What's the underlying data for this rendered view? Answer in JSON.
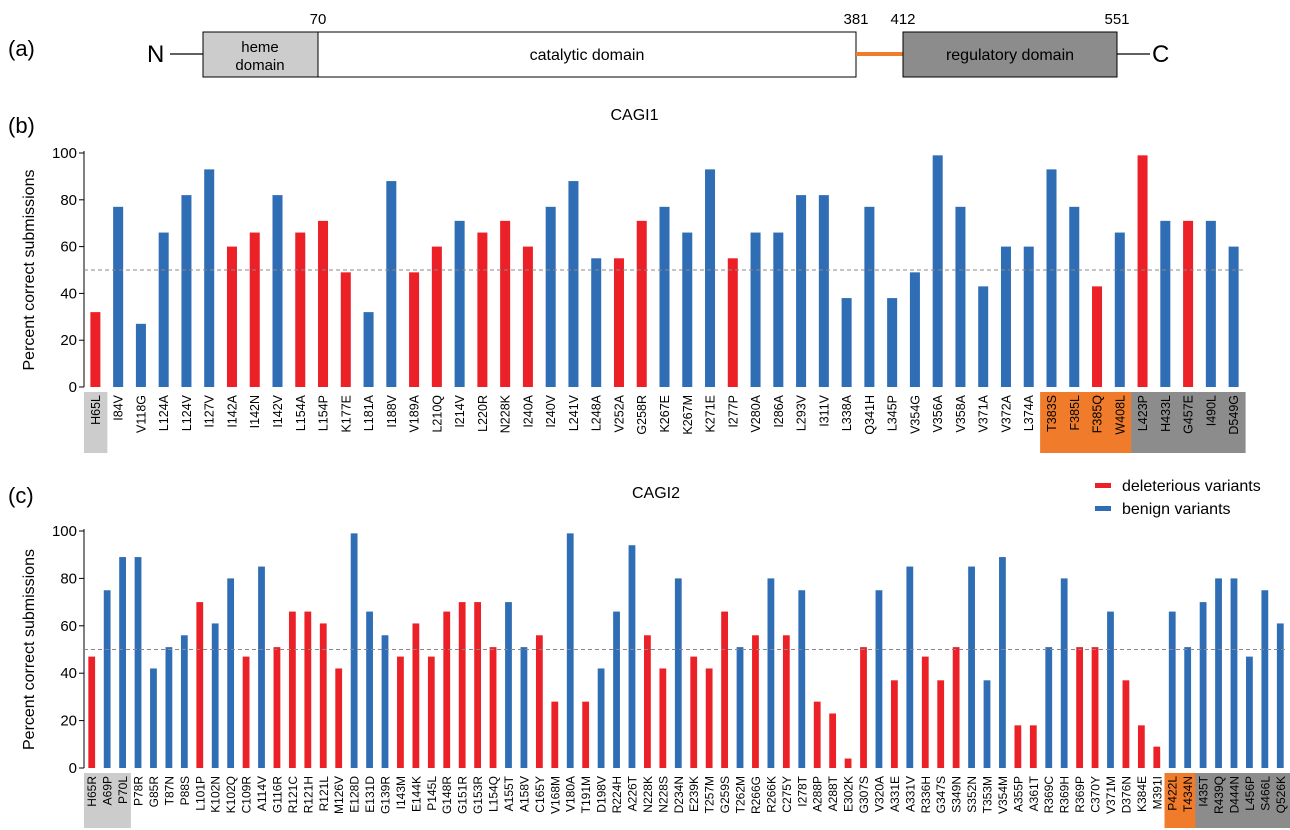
{
  "panels": {
    "a": "(a)",
    "b": "(b)",
    "c": "(c)"
  },
  "domain_diagram": {
    "n_label": "N",
    "c_label": "C",
    "positions": [
      "70",
      "381",
      "412",
      "551"
    ],
    "heme_label_line1": "heme",
    "heme_label_line2": "domain",
    "catalytic_label": "catalytic domain",
    "regulatory_label": "regulatory domain",
    "colors": {
      "heme": "#cccccc",
      "catalytic": "#ffffff",
      "linker": "#f07b2a",
      "regulatory": "#8c8c8c"
    }
  },
  "legend": {
    "deleterious": "deleterious variants",
    "benign": "benign variants",
    "placement": "top-right"
  },
  "colors": {
    "deleterious": "#ec2027",
    "benign": "#2f6db5",
    "highlight_gray": "#cccccc",
    "highlight_orange": "#f07b2a",
    "highlight_dark": "#8c8c8c"
  },
  "chart_data": [
    {
      "type": "bar",
      "title": "CAGI1",
      "ylabel": "Percent correct submissions",
      "ylim": [
        0,
        100
      ],
      "yticks": [
        "0",
        "20",
        "40",
        "60",
        "80",
        "100"
      ],
      "reference_line": 50,
      "categories": [
        "H65L",
        "I84V",
        "V118G",
        "L124A",
        "L124V",
        "I127V",
        "I142A",
        "I142N",
        "I142V",
        "L154A",
        "L154P",
        "K177E",
        "L181A",
        "I188V",
        "V189A",
        "L210Q",
        "I214V",
        "L220R",
        "N228K",
        "I240A",
        "I240V",
        "L241V",
        "L248A",
        "V252A",
        "G258R",
        "K267E",
        "K267M",
        "K271E",
        "I277P",
        "V280A",
        "I286A",
        "L293V",
        "I311V",
        "L338A",
        "Q341H",
        "L345P",
        "V354G",
        "V356A",
        "V358A",
        "V371A",
        "V372A",
        "L374A",
        "T383S",
        "F385L",
        "F385Q",
        "W408L",
        "L423P",
        "H433L",
        "G457E",
        "I490L",
        "D549G"
      ],
      "values": [
        32,
        77,
        27,
        66,
        82,
        93,
        60,
        66,
        82,
        66,
        71,
        49,
        32,
        88,
        49,
        60,
        71,
        66,
        71,
        60,
        77,
        88,
        55,
        55,
        71,
        77,
        66,
        93,
        55,
        66,
        66,
        82,
        82,
        38,
        77,
        38,
        49,
        99,
        77,
        43,
        60,
        60,
        93,
        77,
        43,
        66,
        99,
        71,
        71,
        71,
        60
      ],
      "classes": [
        "d",
        "b",
        "b",
        "b",
        "b",
        "b",
        "d",
        "d",
        "b",
        "d",
        "d",
        "d",
        "b",
        "b",
        "d",
        "d",
        "b",
        "d",
        "d",
        "d",
        "b",
        "b",
        "b",
        "d",
        "d",
        "b",
        "b",
        "b",
        "d",
        "b",
        "b",
        "b",
        "b",
        "b",
        "b",
        "b",
        "b",
        "b",
        "b",
        "b",
        "b",
        "b",
        "b",
        "b",
        "d",
        "b",
        "d",
        "b",
        "d",
        "b",
        "b"
      ],
      "label_highlights": [
        "gray",
        "",
        "",
        "",
        "",
        "",
        "",
        "",
        "",
        "",
        "",
        "",
        "",
        "",
        "",
        "",
        "",
        "",
        "",
        "",
        "",
        "",
        "",
        "",
        "",
        "",
        "",
        "",
        "",
        "",
        "",
        "",
        "",
        "",
        "",
        "",
        "",
        "",
        "",
        "",
        "",
        "",
        "orange",
        "orange",
        "orange",
        "orange",
        "dark",
        "dark",
        "dark",
        "dark",
        "dark"
      ]
    },
    {
      "type": "bar",
      "title": "CAGI2",
      "ylabel": "Percent correct submissions",
      "ylim": [
        0,
        100
      ],
      "yticks": [
        "0",
        "20",
        "40",
        "60",
        "80",
        "100"
      ],
      "reference_line": 50,
      "categories": [
        "H65R",
        "A69P",
        "P70L",
        "P78R",
        "G85R",
        "T87N",
        "P88S",
        "L101P",
        "K102N",
        "K102Q",
        "C109R",
        "A114V",
        "G116R",
        "R121C",
        "R121H",
        "R121L",
        "M126V",
        "E128D",
        "E131D",
        "G139R",
        "I143M",
        "E144K",
        "P145L",
        "G148R",
        "G151R",
        "G153R",
        "L154Q",
        "A155T",
        "A158V",
        "C165Y",
        "V168M",
        "V180A",
        "T191M",
        "D198V",
        "R224H",
        "A226T",
        "N228K",
        "N228S",
        "D234N",
        "E239K",
        "T257M",
        "G259S",
        "T262M",
        "R266G",
        "R266K",
        "C275Y",
        "I278T",
        "A288P",
        "A288T",
        "E302K",
        "G307S",
        "V320A",
        "A331E",
        "A331V",
        "R336H",
        "G347S",
        "S349N",
        "S352N",
        "T353M",
        "V354M",
        "A355P",
        "A361T",
        "R369C",
        "R369H",
        "R369P",
        "C370Y",
        "V371M",
        "D376N",
        "K384E",
        "M391I",
        "P422L",
        "T434N",
        "I435T",
        "R439Q",
        "D444N",
        "L456P",
        "S466L",
        "Q526K"
      ],
      "values": [
        47,
        75,
        89,
        89,
        42,
        51,
        56,
        70,
        61,
        80,
        47,
        85,
        51,
        66,
        66,
        61,
        42,
        99,
        66,
        56,
        47,
        61,
        47,
        66,
        70,
        70,
        51,
        70,
        51,
        56,
        28,
        99,
        28,
        42,
        66,
        94,
        56,
        42,
        80,
        47,
        42,
        66,
        51,
        56,
        80,
        56,
        75,
        28,
        23,
        4,
        51,
        75,
        37,
        85,
        47,
        37,
        51,
        85,
        37,
        89,
        18,
        18,
        51,
        80,
        51,
        51,
        66,
        37,
        18,
        9,
        66,
        51,
        70,
        80,
        80,
        47,
        75,
        61
      ],
      "classes": [
        "d",
        "b",
        "b",
        "b",
        "b",
        "b",
        "b",
        "d",
        "b",
        "b",
        "d",
        "b",
        "d",
        "d",
        "d",
        "d",
        "d",
        "b",
        "b",
        "b",
        "d",
        "d",
        "d",
        "d",
        "d",
        "d",
        "d",
        "b",
        "b",
        "d",
        "d",
        "b",
        "d",
        "b",
        "b",
        "b",
        "d",
        "d",
        "b",
        "d",
        "d",
        "d",
        "b",
        "d",
        "b",
        "d",
        "b",
        "d",
        "d",
        "d",
        "d",
        "b",
        "d",
        "b",
        "d",
        "d",
        "d",
        "b",
        "b",
        "b",
        "d",
        "d",
        "b",
        "b",
        "d",
        "d",
        "b",
        "d",
        "d",
        "d",
        "b",
        "b",
        "b",
        "b",
        "b",
        "b",
        "b",
        "b"
      ],
      "label_highlights": [
        "gray",
        "gray",
        "gray",
        "",
        "",
        "",
        "",
        "",
        "",
        "",
        "",
        "",
        "",
        "",
        "",
        "",
        "",
        "",
        "",
        "",
        "",
        "",
        "",
        "",
        "",
        "",
        "",
        "",
        "",
        "",
        "",
        "",
        "",
        "",
        "",
        "",
        "",
        "",
        "",
        "",
        "",
        "",
        "",
        "",
        "",
        "",
        "",
        "",
        "",
        "",
        "",
        "",
        "",
        "",
        "",
        "",
        "",
        "",
        "",
        "",
        "",
        "",
        "",
        "",
        "",
        "",
        "",
        "",
        "",
        "",
        "orange",
        "orange",
        "dark",
        "dark",
        "dark",
        "dark",
        "dark",
        "dark",
        "dark",
        "dark"
      ]
    }
  ]
}
